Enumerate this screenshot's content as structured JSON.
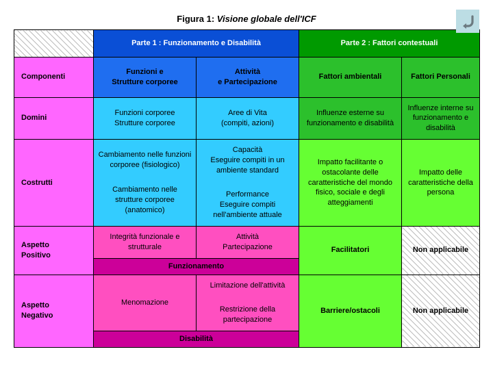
{
  "title_prefix": "Figura 1: ",
  "title_italic": "Visione globale dell'ICF",
  "colors": {
    "magenta_light": "#ff66ff",
    "blue_head": "#0a4fd6",
    "green_head": "#009a00",
    "blue_sub": "#1f6ef0",
    "green_sub": "#2cc02c",
    "cyan": "#33ccff",
    "green_cell": "#66ff33",
    "pink_cell": "#ff4fc0",
    "magenta_dark": "#cc0099",
    "text_white": "#ffffff",
    "text_black": "#000000"
  },
  "parts": {
    "part1": "Parte 1 : Funzionamento e Disabilità",
    "part2": "Parte 2 : Fattori contestuali"
  },
  "rows": {
    "componenti": {
      "label": "Componenti",
      "c1": "Funzioni e\nStrutture corporee",
      "c2": "Attività\ne Partecipazione",
      "c3": "Fattori ambientali",
      "c4": "Fattori Personali"
    },
    "domini": {
      "label": "Domini",
      "c1": "Funzioni corporee\nStrutture corporee",
      "c2": "Aree di Vita\n(compiti, azioni)",
      "c3": "Influenze esterne su funzionamento e disabilità",
      "c4": "Influenze interne su funzionamento e disabilità"
    },
    "costrutti": {
      "label": "Costrutti",
      "c1": "Cambiamento nelle funzioni corporee (fisiologico)\n\nCambiamento nelle strutture corporee (anatomico)",
      "c2": "Capacità\nEseguire compiti in un ambiente standard\n\nPerformance\nEseguire compiti nell'ambiente attuale",
      "c3": "Impatto facilitante o ostacolante delle caratteristiche del mondo fisico, sociale e degli atteggiamenti",
      "c4": "Impatto delle caratteristiche della persona"
    },
    "aspetto_positivo": {
      "label": "Aspetto\nPositivo",
      "c1": "Integrità funzionale e strutturale",
      "c2": "Attività\nPartecipazione",
      "merge12": "Funzionamento",
      "c3": "Facilitatori",
      "c4": "Non applicabile"
    },
    "aspetto_negativo": {
      "label": "Aspetto\nNegativo",
      "c1": "Menomazione",
      "c2": "Limitazione dell'attività\n\nRestrizione della partecipazione",
      "merge12": "Disabilità",
      "c3": "Barriere/ostacoli",
      "c4": "Non applicabile"
    }
  }
}
